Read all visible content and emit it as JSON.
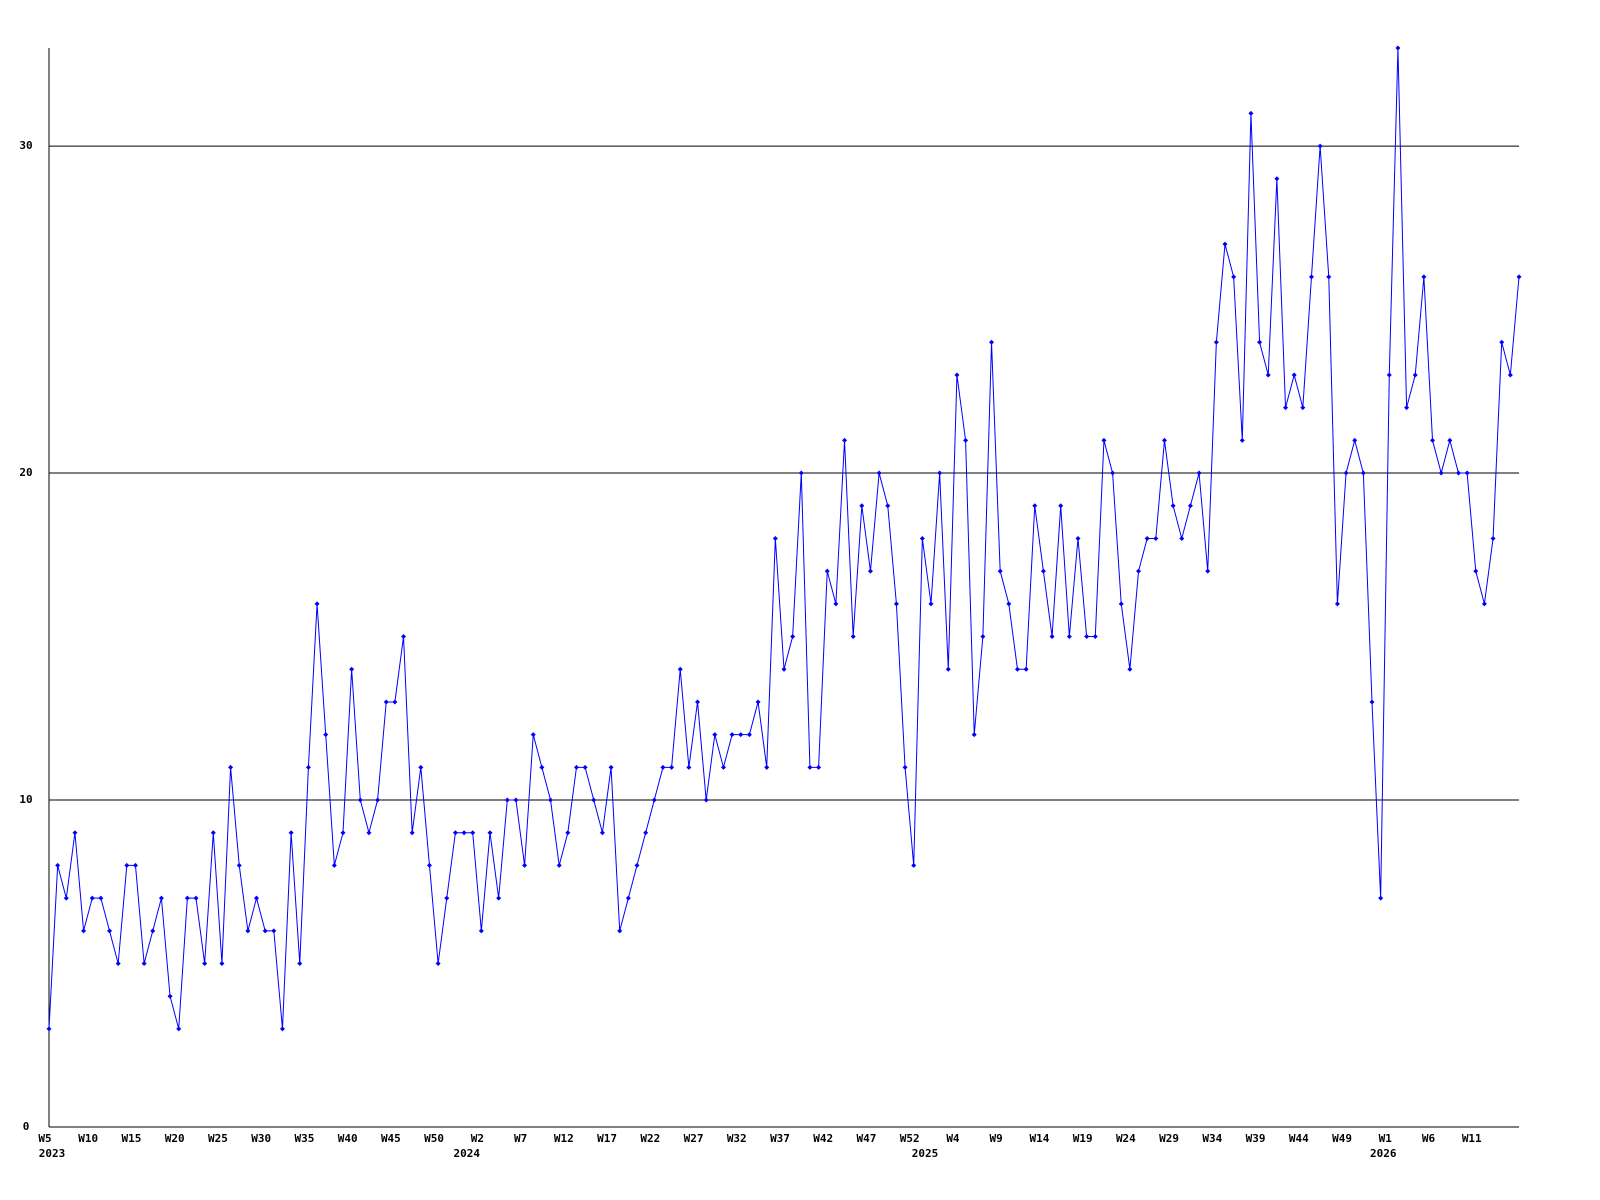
{
  "chart_data": {
    "type": "line",
    "categories": [
      "W5",
      null,
      null,
      null,
      null,
      "W10",
      null,
      null,
      null,
      null,
      "W15",
      null,
      null,
      null,
      null,
      "W20",
      null,
      null,
      null,
      null,
      "W25",
      null,
      null,
      null,
      null,
      "W30",
      null,
      null,
      null,
      null,
      "W35",
      null,
      null,
      null,
      null,
      "W40",
      null,
      null,
      null,
      null,
      "W45",
      null,
      null,
      null,
      null,
      "W50",
      null,
      null,
      null,
      null,
      "W2",
      null,
      null,
      null,
      null,
      "W7",
      null,
      null,
      null,
      null,
      "W12",
      null,
      null,
      null,
      null,
      "W17",
      null,
      null,
      null,
      null,
      "W22",
      null,
      null,
      null,
      null,
      "W27",
      null,
      null,
      null,
      null,
      "W32",
      null,
      null,
      null,
      null,
      "W37",
      null,
      null,
      null,
      null,
      "W42",
      null,
      null,
      null,
      null,
      "W47",
      null,
      null,
      null,
      null,
      "W52",
      null,
      null,
      null,
      null,
      "W4",
      null,
      null,
      null,
      null,
      "W9",
      null,
      null,
      null,
      null,
      "W14",
      null,
      null,
      null,
      null,
      "W19",
      null,
      null,
      null,
      null,
      "W24",
      null,
      null,
      null,
      null,
      "W29",
      null,
      null,
      null,
      null,
      "W34",
      null,
      null,
      null,
      null,
      "W39",
      null,
      null,
      null,
      null,
      "W44",
      null,
      null,
      null,
      null,
      "W49",
      null,
      null,
      null,
      null,
      "W1",
      null,
      null,
      null,
      null,
      "W6",
      null,
      null,
      null,
      null,
      "W11",
      null,
      null,
      null,
      null,
      null
    ],
    "category_years": [
      "2023",
      null,
      null,
      null,
      null,
      null,
      null,
      null,
      null,
      null,
      null,
      null,
      null,
      null,
      null,
      null,
      null,
      null,
      null,
      null,
      null,
      null,
      null,
      null,
      null,
      null,
      null,
      null,
      null,
      null,
      null,
      null,
      null,
      null,
      null,
      null,
      null,
      null,
      null,
      null,
      null,
      null,
      null,
      null,
      null,
      null,
      null,
      null,
      null,
      "2024",
      null,
      null,
      null,
      null,
      null,
      null,
      null,
      null,
      null,
      null,
      null,
      null,
      null,
      null,
      null,
      null,
      null,
      null,
      null,
      null,
      null,
      null,
      null,
      null,
      null,
      null,
      null,
      null,
      null,
      null,
      null,
      null,
      null,
      null,
      null,
      null,
      null,
      null,
      null,
      null,
      null,
      null,
      null,
      null,
      null,
      null,
      null,
      null,
      null,
      null,
      null,
      null,
      "2025",
      null,
      null,
      null,
      null,
      null,
      null,
      null,
      null,
      null,
      null,
      null,
      null,
      null,
      null,
      null,
      null,
      null,
      null,
      null,
      null,
      null,
      null,
      null,
      null,
      null,
      null,
      null,
      null,
      null,
      null,
      null,
      null,
      null,
      null,
      null,
      null,
      null,
      null,
      null,
      null,
      null,
      null,
      null,
      null,
      null,
      null,
      null,
      null,
      null,
      null,
      null,
      null,
      "2026",
      null,
      null,
      null,
      null,
      null,
      null,
      null,
      null,
      null,
      null,
      null,
      null,
      null,
      null,
      null
    ],
    "values": [
      3,
      8,
      7,
      9,
      6,
      7,
      7,
      6,
      5,
      8,
      8,
      5,
      6,
      7,
      4,
      3,
      7,
      7,
      5,
      9,
      5,
      11,
      8,
      6,
      7,
      6,
      6,
      3,
      9,
      5,
      11,
      16,
      12,
      8,
      9,
      14,
      10,
      9,
      10,
      13,
      13,
      15,
      9,
      11,
      8,
      5,
      7,
      9,
      9,
      9,
      6,
      9,
      7,
      10,
      10,
      8,
      12,
      11,
      10,
      8,
      9,
      11,
      11,
      10,
      9,
      11,
      6,
      7,
      8,
      9,
      10,
      11,
      11,
      14,
      11,
      13,
      10,
      12,
      11,
      12,
      12,
      12,
      13,
      11,
      18,
      14,
      15,
      20,
      11,
      11,
      17,
      16,
      21,
      15,
      19,
      17,
      20,
      19,
      16,
      11,
      8,
      18,
      16,
      20,
      14,
      23,
      21,
      12,
      15,
      24,
      17,
      16,
      14,
      14,
      19,
      17,
      15,
      19,
      15,
      18,
      15,
      15,
      21,
      20,
      16,
      14,
      17,
      18,
      18,
      21,
      19,
      18,
      19,
      20,
      17,
      24,
      27,
      26,
      21,
      31,
      24,
      23,
      29,
      22,
      23,
      22,
      26,
      30,
      26,
      16,
      20,
      21,
      20,
      13,
      7,
      23,
      33,
      22,
      23,
      26,
      21,
      20,
      21,
      20,
      20,
      17,
      16,
      18,
      24,
      23,
      26
    ],
    "color": "#0000ff",
    "ylim": [
      0,
      33
    ],
    "yticks": [
      0,
      10,
      20,
      30
    ],
    "grid": true
  }
}
